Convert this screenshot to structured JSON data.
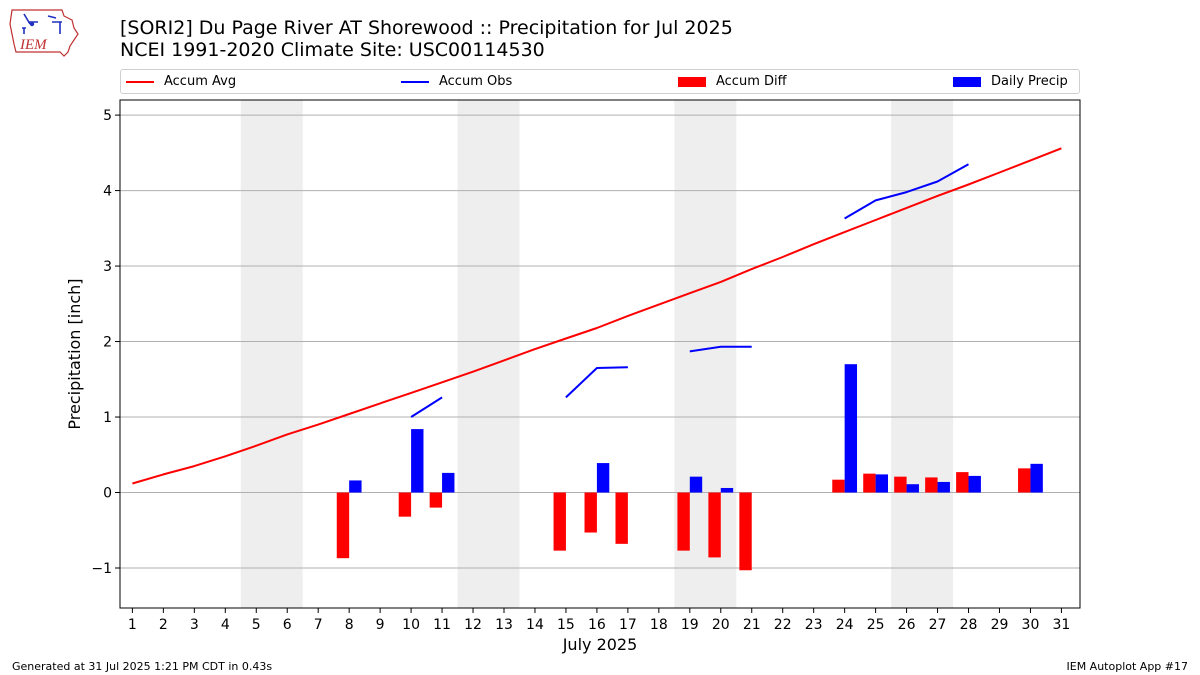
{
  "title_line1": "[SORI2] Du Page River  AT Shorewood :: Precipitation for Jul 2025",
  "title_line2": "NCEI 1991-2020 Climate Site: USC00114530",
  "logo_text": "IEM",
  "footer_left": "Generated at 31 Jul 2025 1:21 PM CDT in 0.43s",
  "footer_right": "IEM Autoplot App #17",
  "colors": {
    "avg": "#ff0000",
    "obs": "#0000ff",
    "diff": "#ff0000",
    "daily": "#0000ff",
    "weekend_shade": "#eeeeee",
    "grid": "#b0b0b0"
  },
  "chart_data": {
    "type": "bar",
    "xlabel": "July 2025",
    "ylabel": "Precipitation [inch]",
    "ylim": [
      -1.53,
      5.2
    ],
    "xlim": [
      0.6,
      31.6
    ],
    "x_ticks": [
      1,
      2,
      3,
      4,
      5,
      6,
      7,
      8,
      9,
      10,
      11,
      12,
      13,
      14,
      15,
      16,
      17,
      18,
      19,
      20,
      21,
      22,
      23,
      24,
      25,
      26,
      27,
      28,
      29,
      30,
      31
    ],
    "y_ticks": [
      -1,
      0,
      1,
      2,
      3,
      4,
      5
    ],
    "y_tick_labels": [
      "−1",
      "0",
      "1",
      "2",
      "3",
      "4",
      "5"
    ],
    "grid": "horizontal",
    "legend_placement": "top",
    "weekend_days": [
      5,
      6,
      12,
      13,
      19,
      20,
      26,
      27
    ],
    "series": [
      {
        "name": "Accum Avg",
        "kind": "line",
        "x": [
          1,
          2,
          3,
          4,
          5,
          6,
          7,
          8,
          9,
          10,
          11,
          12,
          13,
          14,
          15,
          16,
          17,
          18,
          19,
          20,
          21,
          22,
          23,
          24,
          25,
          26,
          27,
          28,
          29,
          30,
          31
        ],
        "values": [
          0.12,
          0.24,
          0.35,
          0.48,
          0.62,
          0.77,
          0.9,
          1.04,
          1.18,
          1.32,
          1.46,
          1.6,
          1.75,
          1.9,
          2.04,
          2.18,
          2.34,
          2.49,
          2.64,
          2.79,
          2.96,
          3.12,
          3.29,
          3.45,
          3.61,
          3.77,
          3.93,
          4.08,
          4.24,
          4.4,
          4.56
        ]
      },
      {
        "name": "Accum Obs",
        "kind": "line",
        "x": [
          1,
          2,
          3,
          4,
          5,
          6,
          7,
          8,
          9,
          10,
          11,
          12,
          13,
          14,
          15,
          16,
          17,
          18,
          19,
          20,
          21,
          22,
          23,
          24,
          25,
          26,
          27,
          28,
          29,
          30,
          31
        ],
        "values": [
          null,
          null,
          null,
          null,
          null,
          null,
          null,
          null,
          null,
          1.0,
          1.26,
          null,
          null,
          null,
          1.26,
          1.65,
          1.66,
          null,
          1.87,
          1.93,
          1.93,
          null,
          null,
          3.63,
          3.87,
          3.98,
          4.12,
          4.35,
          null,
          null,
          null
        ]
      },
      {
        "name": "Accum Diff",
        "kind": "bar",
        "x": [
          8,
          10,
          11,
          15,
          16,
          17,
          19,
          20,
          21,
          24,
          25,
          26,
          27,
          28,
          30
        ],
        "values": [
          -0.87,
          -0.32,
          -0.2,
          -0.77,
          -0.53,
          -0.68,
          -0.77,
          -0.86,
          -1.03,
          0.17,
          0.25,
          0.21,
          0.2,
          0.27,
          0.32
        ]
      },
      {
        "name": "Daily Precip",
        "kind": "bar",
        "x": [
          8,
          10,
          11,
          16,
          19,
          20,
          24,
          25,
          26,
          27,
          28,
          30
        ],
        "values": [
          0.16,
          0.84,
          0.26,
          0.39,
          0.21,
          0.06,
          1.7,
          0.24,
          0.11,
          0.14,
          0.22,
          0.38
        ]
      }
    ]
  }
}
